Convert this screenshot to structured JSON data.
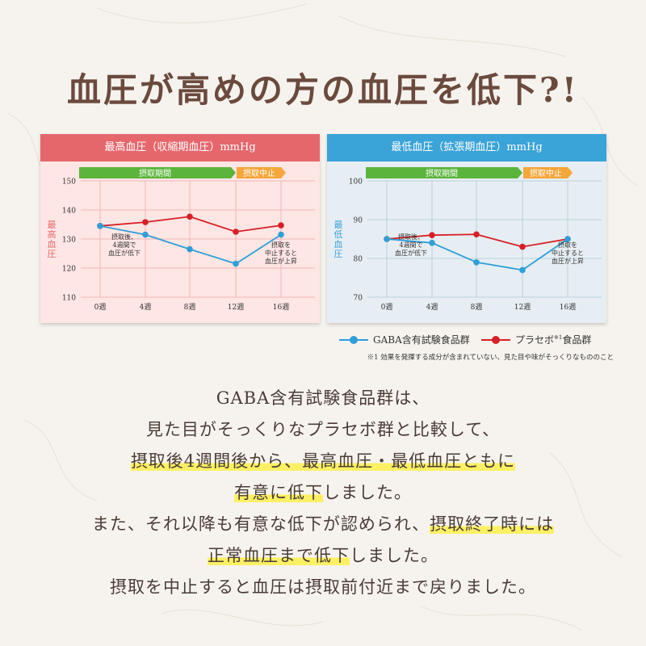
{
  "headline": "血圧が高めの方の血圧を低下?!",
  "colors": {
    "title": "#6b4a3e",
    "red_header": "#e5676c",
    "blue_header": "#3aa3d8",
    "gaba_line": "#2f9fd8",
    "placebo_line": "#d81f26",
    "highlight": "#fbf064"
  },
  "chart_data": [
    {
      "type": "line",
      "title": "最高血圧（収縮期血圧）mmHg",
      "ylabel": "最高血圧",
      "categories": [
        "0週",
        "4週",
        "8週",
        "12週",
        "16週"
      ],
      "ylim": [
        110,
        150
      ],
      "yticks": [
        110,
        120,
        130,
        140,
        150
      ],
      "grid": true,
      "phases": [
        {
          "label": "摂取期間"
        },
        {
          "label": "摂取中止"
        }
      ],
      "series": [
        {
          "name": "GABA含有試験食品群",
          "values": [
            134.5,
            131.5,
            126.5,
            121.5,
            131.5
          ]
        },
        {
          "name": "プラセボ食品群",
          "values": [
            134.5,
            135.8,
            137.7,
            132.5,
            134.7
          ]
        }
      ],
      "annotations": [
        {
          "lines": [
            "摂取後、",
            "4週間で",
            "血圧が低下"
          ]
        },
        {
          "lines": [
            "摂取を",
            "中止すると",
            "血圧が上昇"
          ]
        }
      ]
    },
    {
      "type": "line",
      "title": "最低血圧（拡張期血圧）mmHg",
      "ylabel": "最低血圧",
      "categories": [
        "0週",
        "4週",
        "8週",
        "12週",
        "16週"
      ],
      "ylim": [
        70,
        100
      ],
      "yticks": [
        70,
        80,
        90,
        100
      ],
      "grid": true,
      "phases": [
        {
          "label": "摂取期間"
        },
        {
          "label": "摂取中止"
        }
      ],
      "series": [
        {
          "name": "GABA含有試験食品群",
          "values": [
            85,
            84,
            79,
            77,
            85
          ]
        },
        {
          "name": "プラセボ食品群",
          "values": [
            85,
            86,
            86.2,
            83,
            85
          ]
        }
      ],
      "annotations": [
        {
          "lines": [
            "摂取後、",
            "4週間で",
            "血圧が低下"
          ]
        },
        {
          "lines": [
            "摂取を",
            "中止すると",
            "血圧が上昇"
          ]
        }
      ]
    }
  ],
  "legend": {
    "gaba": "GABA含有試験食品群",
    "placebo_pre": "プラセボ",
    "placebo_sup": "※1",
    "placebo_post": "食品群"
  },
  "footnote": "※1 効果を発揮する成分が含まれていない、見た目や味がそっくりなもののこと",
  "body_lines": [
    [
      {
        "t": "GABA含有試験食品群は、",
        "hl": false
      }
    ],
    [
      {
        "t": "見た目がそっくりなプラセボ群と比較して、",
        "hl": false
      }
    ],
    [
      {
        "t": "摂取後4週間後から、最高血圧・最低血圧ともに",
        "hl": true
      }
    ],
    [
      {
        "t": "有意に低下",
        "hl": true
      },
      {
        "t": "しました。",
        "hl": false
      }
    ],
    [
      {
        "t": "また、それ以降も有意な低下が認められ、",
        "hl": false
      },
      {
        "t": "摂取終了時には",
        "hl": true
      }
    ],
    [
      {
        "t": "正常血圧まで低下",
        "hl": true
      },
      {
        "t": "しました。",
        "hl": false
      }
    ],
    [
      {
        "t": "摂取を中止すると血圧は摂取前付近まで戻りました。",
        "hl": false
      }
    ]
  ]
}
